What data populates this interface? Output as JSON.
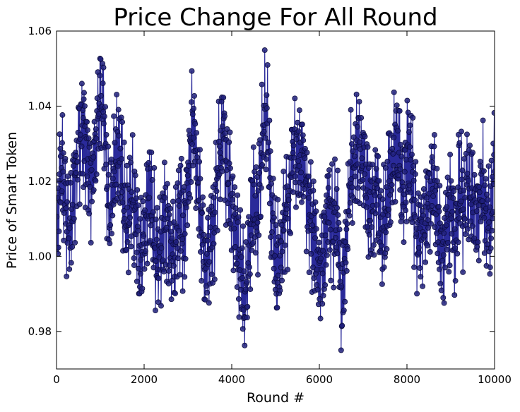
{
  "chart_data": {
    "type": "line",
    "title": "Price Change For All Round",
    "xlabel": "Round #",
    "ylabel": "Price of Smart Token",
    "xlim": [
      0,
      10000
    ],
    "ylim": [
      0.97,
      1.06
    ],
    "x_ticks": [
      0,
      2000,
      4000,
      6000,
      8000,
      10000
    ],
    "x_tick_labels": [
      "0",
      "2000",
      "4000",
      "6000",
      "8000",
      "10000"
    ],
    "y_ticks": [
      0.98,
      1.0,
      1.02,
      1.04,
      1.06
    ],
    "y_tick_labels": [
      "0.98",
      "1.00",
      "1.02",
      "1.04",
      "1.06"
    ],
    "grid": false,
    "legend": "none",
    "markers": "circle",
    "colors": {
      "line": "#2a2a9a",
      "marker_fill": "#1f1f7a",
      "marker_edge": "#0a0a3a"
    },
    "series": [
      {
        "x": [
          0,
          100,
          200,
          300,
          400,
          500,
          600,
          700,
          800,
          900,
          1000,
          1100,
          1200,
          1300,
          1400,
          1500,
          1600,
          1700,
          1800,
          1900,
          2000,
          2100,
          2200,
          2300,
          2400,
          2500,
          2600,
          2700,
          2800,
          2900,
          3000,
          3100,
          3200,
          3300,
          3400,
          3500,
          3600,
          3700,
          3800,
          3900,
          4000,
          4100,
          4200,
          4300,
          4400,
          4500,
          4600,
          4700,
          4800,
          4900,
          5000,
          5100,
          5200,
          5300,
          5400,
          5500,
          5600,
          5700,
          5800,
          5900,
          6000,
          6100,
          6200,
          6300,
          6400,
          6500,
          6600,
          6700,
          6800,
          6900,
          7000,
          7100,
          7200,
          7300,
          7400,
          7500,
          7600,
          7700,
          7800,
          7900,
          8000,
          8100,
          8200,
          8300,
          8400,
          8500,
          8600,
          8700,
          8800,
          8900,
          9000,
          9100,
          9200,
          9300,
          9400,
          9500,
          9600,
          9700,
          9800,
          9900,
          10000
        ],
        "y": [
          1.0,
          1.025,
          1.015,
          1.005,
          1.02,
          1.03,
          1.035,
          1.025,
          1.02,
          1.03,
          1.045,
          1.035,
          1.01,
          1.02,
          1.03,
          1.02,
          1.005,
          1.015,
          1.01,
          1.0,
          1.005,
          1.015,
          1.01,
          0.995,
          1.005,
          1.01,
          1.005,
          1.0,
          1.015,
          1.005,
          1.02,
          1.035,
          1.025,
          1.01,
          0.995,
          1.005,
          1.01,
          1.025,
          1.035,
          1.02,
          1.015,
          1.005,
          0.995,
          0.985,
          1.0,
          1.015,
          1.01,
          1.03,
          1.04,
          1.01,
          0.998,
          1.0,
          1.01,
          1.015,
          1.03,
          1.025,
          1.03,
          1.02,
          1.01,
          1.005,
          0.995,
          1.0,
          1.015,
          1.01,
          1.01,
          0.988,
          1.0,
          1.02,
          1.025,
          1.03,
          1.025,
          1.015,
          1.01,
          1.02,
          1.005,
          1.01,
          1.02,
          1.025,
          1.03,
          1.015,
          1.025,
          1.025,
          1.01,
          1.005,
          1.01,
          1.015,
          1.02,
          1.01,
          1.0,
          1.01,
          1.015,
          1.005,
          1.02,
          1.01,
          1.02,
          1.015,
          1.01,
          1.02,
          1.01,
          1.005,
          1.025
        ]
      }
    ]
  }
}
